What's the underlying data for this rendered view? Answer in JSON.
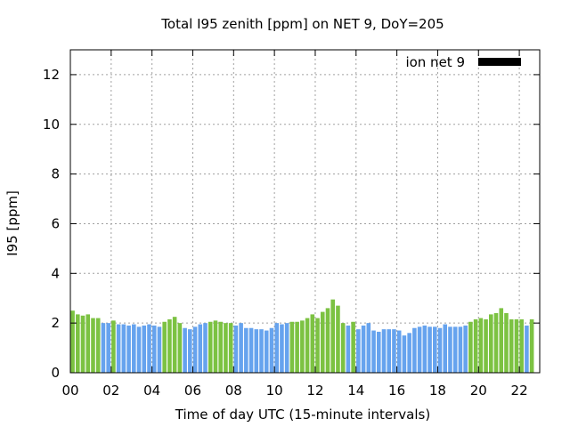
{
  "chart_data": {
    "type": "bar",
    "title": "Total I95 zenith [ppm] on NET 9, DoY=205",
    "xlabel": "Time of day UTC (15-minute intervals)",
    "ylabel": "I95 [ppm]",
    "xlim": [
      0,
      23
    ],
    "ylim": [
      0,
      13
    ],
    "xticks": [
      "00",
      "02",
      "04",
      "06",
      "08",
      "10",
      "12",
      "14",
      "16",
      "18",
      "20",
      "22"
    ],
    "yticks": [
      "0",
      "2",
      "4",
      "6",
      "8",
      "10",
      "12"
    ],
    "grid": true,
    "legend": {
      "position": "top-right",
      "entries": [
        {
          "label": "ion net 9",
          "color": "#000000"
        }
      ]
    },
    "colors": {
      "green": "#7cc242",
      "blue": "#66a3ee"
    },
    "bar_interval_hours": 0.25,
    "values": [
      2.5,
      2.35,
      2.3,
      2.35,
      2.2,
      2.2,
      2.0,
      2.0,
      2.1,
      1.95,
      1.95,
      1.9,
      1.95,
      1.85,
      1.9,
      1.95,
      1.9,
      1.85,
      2.05,
      2.15,
      2.25,
      2.0,
      1.8,
      1.75,
      1.85,
      1.95,
      2.0,
      2.05,
      2.1,
      2.05,
      2.0,
      2.0,
      1.9,
      2.0,
      1.8,
      1.8,
      1.75,
      1.75,
      1.7,
      1.8,
      2.0,
      1.95,
      2.0,
      2.05,
      2.05,
      2.1,
      2.2,
      2.35,
      2.2,
      2.45,
      2.6,
      2.95,
      2.7,
      2.0,
      1.9,
      2.05,
      1.75,
      1.9,
      2.0,
      1.7,
      1.65,
      1.75,
      1.75,
      1.75,
      1.7,
      1.5,
      1.6,
      1.8,
      1.85,
      1.9,
      1.85,
      1.85,
      1.8,
      1.95,
      1.85,
      1.85,
      1.85,
      1.9,
      2.05,
      2.15,
      2.2,
      2.15,
      2.35,
      2.4,
      2.6,
      2.4,
      2.15,
      2.15,
      2.15,
      1.9,
      2.15
    ],
    "bar_colors": [
      "green",
      "green",
      "green",
      "green",
      "green",
      "green",
      "blue",
      "blue",
      "green",
      "blue",
      "blue",
      "blue",
      "blue",
      "blue",
      "blue",
      "blue",
      "blue",
      "blue",
      "green",
      "green",
      "green",
      "green",
      "blue",
      "blue",
      "blue",
      "blue",
      "blue",
      "green",
      "green",
      "green",
      "green",
      "green",
      "blue",
      "blue",
      "blue",
      "blue",
      "blue",
      "blue",
      "blue",
      "blue",
      "blue",
      "blue",
      "blue",
      "green",
      "green",
      "green",
      "green",
      "green",
      "green",
      "green",
      "green",
      "green",
      "green",
      "green",
      "blue",
      "green",
      "blue",
      "blue",
      "blue",
      "blue",
      "blue",
      "blue",
      "blue",
      "blue",
      "blue",
      "blue",
      "blue",
      "blue",
      "blue",
      "blue",
      "blue",
      "blue",
      "blue",
      "blue",
      "blue",
      "blue",
      "blue",
      "blue",
      "green",
      "green",
      "green",
      "green",
      "green",
      "green",
      "green",
      "green",
      "green",
      "green",
      "green",
      "blue",
      "green"
    ]
  }
}
